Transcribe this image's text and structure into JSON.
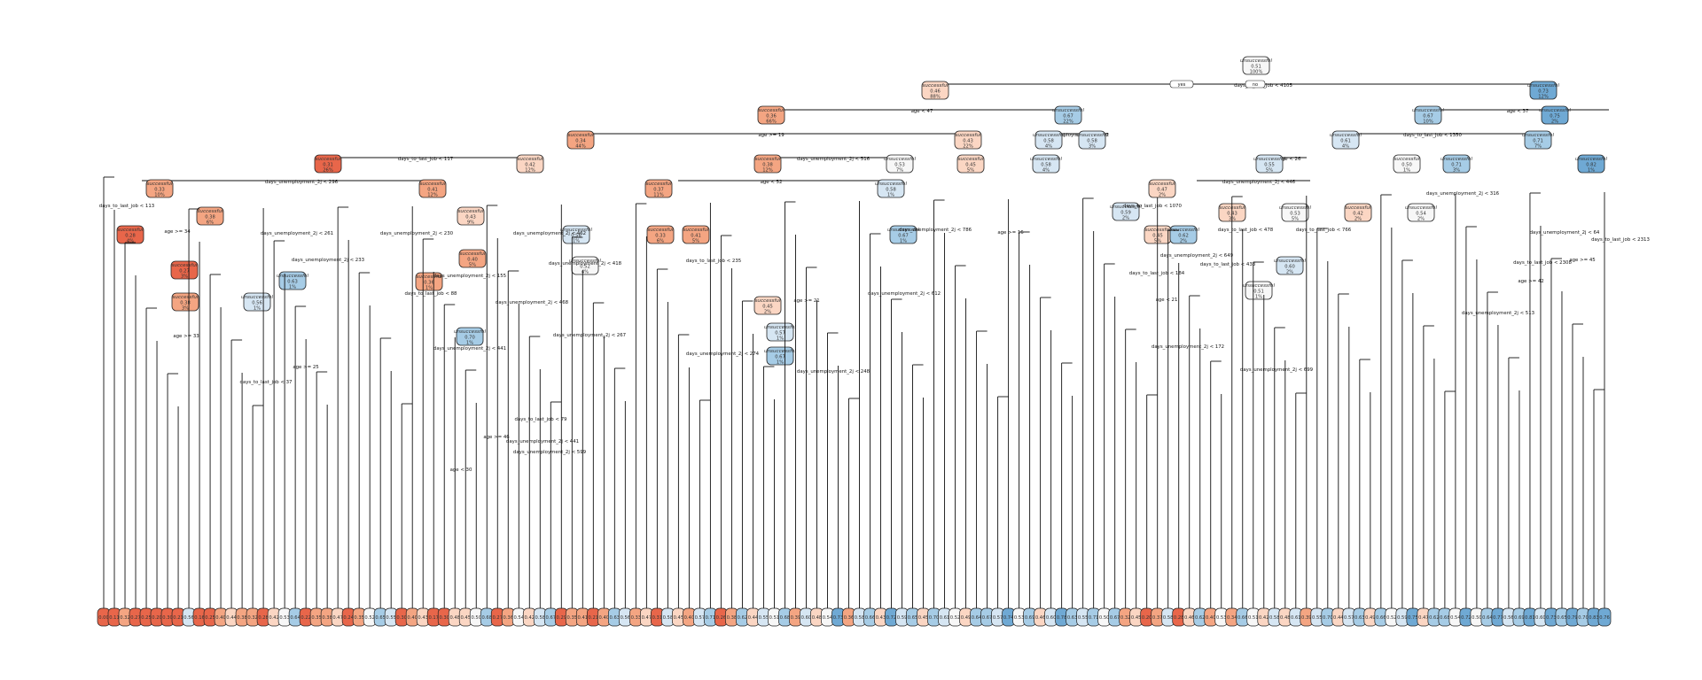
{
  "colors": {
    "successful_dark": "#E8664A",
    "successful_mid": "#F4A582",
    "successful_light": "#FBD6C3",
    "neutral": "#F7F7F7",
    "unsuccessful_light": "#D6E6F3",
    "unsuccessful_mid": "#A6CCE6",
    "unsuccessful_dark": "#6FA9D4"
  },
  "root": {
    "label": "unsuccessful",
    "value": "0.51",
    "pct": "100%",
    "split": "days_to_last_job < 4105",
    "yes": "yes",
    "no": "no"
  },
  "level1": [
    {
      "label": "successful",
      "value": "0.46",
      "pct": "88%",
      "split": "age < 47"
    },
    {
      "label": "unsuccessful",
      "value": "0.73",
      "pct": "12%",
      "split": "age < 37"
    }
  ],
  "level2": [
    {
      "label": "successful",
      "value": "0.36",
      "pct": "66%",
      "split": "age >= 19"
    },
    {
      "label": "unsuccessful",
      "value": "0.67",
      "pct": "22%",
      "split": "days_unemployment_2j < 332"
    },
    {
      "label": "unsuccessful",
      "value": "0.67",
      "pct": "10%",
      "split": "days_to_last_job < 1350"
    },
    {
      "label": "unsuccessful",
      "value": "0.75",
      "pct": "2%",
      "split": ""
    }
  ],
  "level3": [
    {
      "label": "successful",
      "value": "0.34",
      "pct": "44%",
      "split": "days_to_last_job < 117"
    },
    {
      "label": "successful",
      "value": "0.43",
      "pct": "22%",
      "split": "days_unemployment_2j < 516"
    },
    {
      "label": "unsuccessful",
      "value": "0.58",
      "pct": "4%",
      "split": ""
    },
    {
      "label": "unsuccessful",
      "value": "0.58",
      "pct": "3%",
      "split": ""
    },
    {
      "label": "unsuccessful",
      "value": "0.61",
      "pct": "4%",
      "split": "age < 26"
    },
    {
      "label": "unsuccessful",
      "value": "0.71",
      "pct": "7%",
      "split": ""
    }
  ],
  "level4": [
    {
      "label": "successful",
      "value": "0.31",
      "pct": "26%",
      "split": "days_unemployment_2j < 296"
    },
    {
      "label": "successful",
      "value": "0.42",
      "pct": "12%",
      "split": ""
    },
    {
      "label": "successful",
      "value": "0.38",
      "pct": "12%",
      "split": "age < 52"
    },
    {
      "label": "unsuccessful",
      "value": "0.53",
      "pct": "7%",
      "split": ""
    },
    {
      "label": "unsuccessful",
      "value": "0.55",
      "pct": "5%",
      "split": "days_unemployment_2j < 446"
    },
    {
      "label": "successful",
      "value": "0.45",
      "pct": "5%",
      "split": ""
    },
    {
      "label": "unsuccessful",
      "value": "0.58",
      "pct": "4%",
      "split": ""
    },
    {
      "label": "successful",
      "value": "0.50",
      "pct": "1%",
      "split": ""
    },
    {
      "label": "unsuccessful",
      "value": "0.71",
      "pct": "3%",
      "split": ""
    },
    {
      "label": "unsuccessful",
      "value": "0.82",
      "pct": "1%",
      "split": ""
    }
  ],
  "split_labels_misc": [
    "days_to_last_job < 113",
    "days_unemployment_2j < 261",
    "days_unemployment_2j < 462",
    "days_to_last_job < 1070",
    "age >= 34",
    "days_unemployment_2j < 230",
    "days_unemployment_2j < 418",
    "days_to_last_job < 235",
    "days_unemployment_2j < 786",
    "days_to_last_job < 478",
    "days_to_last_job < 766",
    "days_unemployment_2j < 233",
    "days_to_last_job < 88",
    "days_unemployment_2j < 155",
    "age >= 21",
    "days_unemployment_2j < 612",
    "days_unemployment_2j < 649",
    "days_to_last_job < 433",
    "days_to_last_job < 184",
    "age < 21",
    "age >= 33",
    "days_unemployment_2j < 468",
    "days_unemployment_2j < 267",
    "days_unemployment_2j < 441",
    "days_unemployment_2j < 172",
    "days_unemployment_2j < 274",
    "days_unemployment_2j < 248",
    "days_unemployment_2j < 699",
    "days_to_last_job < 37",
    "days_to_last_job < 79",
    "age >= 46",
    "age < 30",
    "age >= 25",
    "age >= 16",
    "days_unemployment_2j < 513",
    "days_unemployment_2j < 64",
    "age >= 45",
    "age >= 42",
    "days_unemployment_2j < 599",
    "days_unemployment_2j < 441",
    "days_to_last_job < 2313",
    "days_to_last_job < 2308",
    "days_unemployment_2j < 316"
  ],
  "mid_nodes": [
    {
      "label": "successful",
      "value": "0.33",
      "pct": "10%"
    },
    {
      "label": "successful",
      "value": "0.28",
      "pct": "4%"
    },
    {
      "label": "successful",
      "value": "0.38",
      "pct": "6%"
    },
    {
      "label": "successful",
      "value": "0.41",
      "pct": "12%"
    },
    {
      "label": "successful",
      "value": "0.43",
      "pct": "9%"
    },
    {
      "label": "successful",
      "value": "0.40",
      "pct": "5%"
    },
    {
      "label": "unsuccessful",
      "value": "0.56",
      "pct": "1%"
    },
    {
      "label": "unsuccessful",
      "value": "0.52",
      "pct": "4%"
    },
    {
      "label": "successful",
      "value": "0.37",
      "pct": "11%"
    },
    {
      "label": "successful",
      "value": "0.33",
      "pct": "6%"
    },
    {
      "label": "successful",
      "value": "0.41",
      "pct": "5%"
    },
    {
      "label": "unsuccessful",
      "value": "0.58",
      "pct": "1%"
    },
    {
      "label": "unsuccessful",
      "value": "0.67",
      "pct": "1%"
    },
    {
      "label": "successful",
      "value": "0.47",
      "pct": "2%"
    },
    {
      "label": "successful",
      "value": "0.45",
      "pct": "5%"
    },
    {
      "label": "unsuccessful",
      "value": "0.62",
      "pct": "2%"
    },
    {
      "label": "unsuccessful",
      "value": "0.59",
      "pct": "2%"
    },
    {
      "label": "successful",
      "value": "0.43",
      "pct": "3%"
    },
    {
      "label": "unsuccessful",
      "value": "0.53",
      "pct": "5%"
    },
    {
      "label": "successful",
      "value": "0.42",
      "pct": "2%"
    },
    {
      "label": "unsuccessful",
      "value": "0.54",
      "pct": "2%"
    },
    {
      "label": "unsuccessful",
      "value": "0.60",
      "pct": "2%"
    },
    {
      "label": "unsuccessful",
      "value": "0.51",
      "pct": "1%"
    },
    {
      "label": "successful",
      "value": "0.27",
      "pct": "3%"
    },
    {
      "label": "successful",
      "value": "0.38",
      "pct": "3%"
    },
    {
      "label": "unsuccessful",
      "value": "0.63",
      "pct": "1%"
    },
    {
      "label": "unsuccessful",
      "value": "0.56",
      "pct": "1%"
    },
    {
      "label": "successful",
      "value": "0.36",
      "pct": "1%"
    },
    {
      "label": "unsuccessful",
      "value": "0.70",
      "pct": "1%"
    },
    {
      "label": "successful",
      "value": "0.45",
      "pct": "2%"
    },
    {
      "label": "unsuccessful",
      "value": "0.57",
      "pct": "1%"
    },
    {
      "label": "unsuccessful",
      "value": "0.67",
      "pct": "1%"
    }
  ],
  "leaves": [
    "0.00",
    "0.11",
    "0.32",
    "0.27",
    "0.25",
    "0.20",
    "0.30",
    "0.21",
    "0.56",
    "0.16",
    "0.25",
    "0.40",
    "0.44",
    "0.38",
    "0.32",
    "0.28",
    "0.42",
    "0.53",
    "0.64",
    "0.22",
    "0.35",
    "0.38",
    "0.47",
    "0.24",
    "0.35",
    "0.52",
    "0.65",
    "0.55",
    "0.30",
    "0.40",
    "0.43",
    "0.17",
    "0.30",
    "0.48",
    "0.45",
    "0.50",
    "0.68",
    "0.27",
    "0.36",
    "0.54",
    "0.42",
    "0.58",
    "0.67",
    "0.29",
    "0.35",
    "0.41",
    "0.21",
    "0.40",
    "0.63",
    "0.56",
    "0.33",
    "0.47",
    "0.31",
    "0.58",
    "0.45",
    "0.40",
    "0.57",
    "0.71",
    "0.26",
    "0.38",
    "0.62",
    "0.44",
    "0.55",
    "0.51",
    "0.68",
    "0.39",
    "0.60",
    "0.48",
    "0.54",
    "0.73",
    "0.36",
    "0.58",
    "0.66",
    "0.43",
    "0.72",
    "0.59",
    "0.65",
    "0.45",
    "0.70",
    "0.61",
    "0.52",
    "0.49",
    "0.64",
    "0.67",
    "0.57",
    "0.74",
    "0.53",
    "0.69",
    "0.46",
    "0.60",
    "0.78",
    "0.63",
    "0.55",
    "0.71",
    "0.50",
    "0.67",
    "0.32",
    "0.45",
    "0.20",
    "0.37",
    "0.58",
    "0.28",
    "0.46",
    "0.62",
    "0.40",
    "0.53",
    "0.34",
    "0.66",
    "0.51",
    "0.42",
    "0.58",
    "0.48",
    "0.61",
    "0.39",
    "0.55",
    "0.70",
    "0.44",
    "0.57",
    "0.63",
    "0.49",
    "0.66",
    "0.52",
    "0.59",
    "0.75",
    "0.47",
    "0.62",
    "0.68",
    "0.54",
    "0.72",
    "0.50",
    "0.64",
    "0.77",
    "0.56",
    "0.69",
    "0.81",
    "0.60",
    "0.73",
    "0.65",
    "0.79",
    "0.70",
    "0.83",
    "0.76"
  ]
}
